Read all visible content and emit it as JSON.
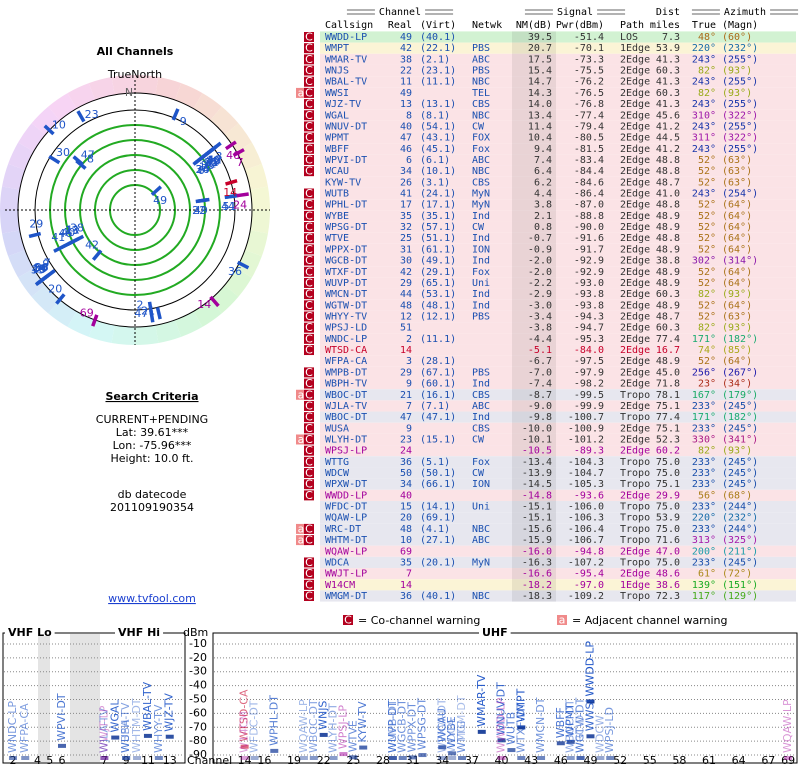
{
  "left": {
    "title": "All Channels",
    "north": "TrueNorth",
    "n": "N",
    "criteria_title": "Search Criteria",
    "criteria": [
      "CURRENT+PENDING",
      "Lat: 39.61***",
      "Lon: -75.96***",
      "Height: 10.0 ft."
    ],
    "db_label": "db datecode",
    "db_code": "201109190354",
    "link": "www.tvfool.com"
  },
  "table": {
    "groups": {
      "channel": "Channel",
      "signal": "Signal",
      "dist": "Dist",
      "azimuth": "Azimuth"
    },
    "headers": {
      "callsign": "Callsign",
      "real": "Real",
      "virt": "(Virt)",
      "netwk": "Netwk",
      "nm": "NM(dB)",
      "pwr": "Pwr(dBm)",
      "path": "Path",
      "dist": "miles",
      "az": "True",
      "magn": "(Magn)"
    },
    "rows": [
      {
        "flags": [
          "C"
        ],
        "callsign": "WWDD-LP",
        "real": "49",
        "virt": "(40.1)",
        "nm": "39.5",
        "pwr": "-51.4",
        "path": "LOS",
        "dist": "7.3",
        "az": "48°",
        "magn": "(60°)"
      },
      {
        "flags": [
          "C"
        ],
        "callsign": "WMPT",
        "real": "42",
        "virt": "(22.1)",
        "netwk": "PBS",
        "nm": "20.7",
        "pwr": "-70.1",
        "path": "1Edge",
        "dist": "53.9",
        "az": "220°",
        "magn": "(232°)"
      },
      {
        "flags": [
          "C"
        ],
        "callsign": "WMAR-TV",
        "real": "38",
        "virt": "(2.1)",
        "netwk": "ABC",
        "nm": "17.5",
        "pwr": "-73.3",
        "path": "2Edge",
        "dist": "41.3",
        "az": "243°",
        "magn": "(255°)"
      },
      {
        "flags": [
          "C"
        ],
        "callsign": "WNJS",
        "real": "22",
        "virt": "(23.1)",
        "netwk": "PBS",
        "nm": "15.4",
        "pwr": "-75.5",
        "path": "2Edge",
        "dist": "60.3",
        "az": "82°",
        "magn": "(93°)"
      },
      {
        "flags": [
          "C"
        ],
        "callsign": "WBAL-TV",
        "real": "11",
        "virt": "(11.1)",
        "netwk": "NBC",
        "nm": "14.7",
        "pwr": "-76.2",
        "path": "2Edge",
        "dist": "41.3",
        "az": "243°",
        "magn": "(255°)"
      },
      {
        "flags": [
          "a",
          "C"
        ],
        "callsign": "WWSI",
        "real": "49",
        "netwk": "TEL",
        "nm": "14.3",
        "pwr": "-76.5",
        "path": "2Edge",
        "dist": "60.3",
        "az": "82°",
        "magn": "(93°)"
      },
      {
        "flags": [
          "C"
        ],
        "callsign": "WJZ-TV",
        "real": "13",
        "virt": "(13.1)",
        "netwk": "CBS",
        "nm": "14.0",
        "pwr": "-76.8",
        "path": "2Edge",
        "dist": "41.3",
        "az": "243°",
        "magn": "(255°)"
      },
      {
        "flags": [
          "C"
        ],
        "callsign": "WGAL",
        "real": "8",
        "virt": "(8.1)",
        "netwk": "NBC",
        "nm": "13.4",
        "pwr": "-77.4",
        "path": "2Edge",
        "dist": "45.6",
        "az": "310°",
        "magn": "(322°)"
      },
      {
        "flags": [
          "C"
        ],
        "callsign": "WNUV-DT",
        "real": "40",
        "virt": "(54.1)",
        "netwk": "CW",
        "nm": "11.4",
        "pwr": "-79.4",
        "path": "2Edge",
        "dist": "41.2",
        "az": "243°",
        "magn": "(255°)"
      },
      {
        "flags": [
          "C"
        ],
        "callsign": "WPMT",
        "real": "47",
        "virt": "(43.1)",
        "netwk": "FOX",
        "nm": "10.4",
        "pwr": "-80.5",
        "path": "2Edge",
        "dist": "44.5",
        "az": "311°",
        "magn": "(322°)"
      },
      {
        "flags": [
          "C"
        ],
        "callsign": "WBFF",
        "real": "46",
        "virt": "(45.1)",
        "netwk": "Fox",
        "nm": "9.4",
        "pwr": "-81.5",
        "path": "2Edge",
        "dist": "41.2",
        "az": "243°",
        "magn": "(255°)"
      },
      {
        "flags": [
          "C"
        ],
        "callsign": "WPVI-DT",
        "real": "6",
        "virt": "(6.1)",
        "netwk": "ABC",
        "nm": "7.4",
        "pwr": "-83.4",
        "path": "2Edge",
        "dist": "48.8",
        "az": "52°",
        "magn": "(63°)"
      },
      {
        "flags": [
          "C"
        ],
        "callsign": "WCAU",
        "real": "34",
        "virt": "(10.1)",
        "netwk": "NBC",
        "nm": "6.4",
        "pwr": "-84.4",
        "path": "2Edge",
        "dist": "48.8",
        "az": "52°",
        "magn": "(63°)"
      },
      {
        "callsign": "KYW-TV",
        "real": "26",
        "virt": "(3.1)",
        "netwk": "CBS",
        "nm": "6.2",
        "pwr": "-84.6",
        "path": "2Edge",
        "dist": "48.7",
        "az": "52°",
        "magn": "(63°)"
      },
      {
        "flags": [
          "C"
        ],
        "callsign": "WUTB",
        "real": "41",
        "virt": "(24.1)",
        "netwk": "MyN",
        "nm": "4.4",
        "pwr": "-86.4",
        "path": "2Edge",
        "dist": "41.0",
        "az": "243°",
        "magn": "(254°)"
      },
      {
        "flags": [
          "C"
        ],
        "callsign": "WPHL-DT",
        "real": "17",
        "virt": "(17.1)",
        "netwk": "MyN",
        "nm": "3.8",
        "pwr": "-87.0",
        "path": "2Edge",
        "dist": "48.8",
        "az": "52°",
        "magn": "(64°)"
      },
      {
        "flags": [
          "C"
        ],
        "callsign": "WYBE",
        "real": "35",
        "virt": "(35.1)",
        "netwk": "Ind",
        "nm": "2.1",
        "pwr": "-88.8",
        "path": "2Edge",
        "dist": "48.9",
        "az": "52°",
        "magn": "(64°)"
      },
      {
        "flags": [
          "C"
        ],
        "callsign": "WPSG-DT",
        "real": "32",
        "virt": "(57.1)",
        "netwk": "CW",
        "nm": "0.8",
        "pwr": "-90.0",
        "path": "2Edge",
        "dist": "48.9",
        "az": "52°",
        "magn": "(64°)"
      },
      {
        "flags": [
          "C"
        ],
        "callsign": "WTVE",
        "real": "25",
        "virt": "(51.1)",
        "netwk": "Ind",
        "nm": "-0.7",
        "pwr": "-91.6",
        "path": "2Edge",
        "dist": "48.8",
        "az": "52°",
        "magn": "(64°)"
      },
      {
        "flags": [
          "C"
        ],
        "callsign": "WPPX-DT",
        "real": "31",
        "virt": "(61.1)",
        "netwk": "ION",
        "nm": "-0.9",
        "pwr": "-91.7",
        "path": "2Edge",
        "dist": "48.9",
        "az": "52°",
        "magn": "(64°)"
      },
      {
        "flags": [
          "C"
        ],
        "callsign": "WGCB-DT",
        "real": "30",
        "virt": "(49.1)",
        "netwk": "Ind",
        "nm": "-2.0",
        "pwr": "-92.9",
        "path": "2Edge",
        "dist": "38.8",
        "az": "302°",
        "magn": "(314°)"
      },
      {
        "flags": [
          "C"
        ],
        "callsign": "WTXF-DT",
        "real": "42",
        "virt": "(29.1)",
        "netwk": "Fox",
        "nm": "-2.0",
        "pwr": "-92.9",
        "path": "2Edge",
        "dist": "48.9",
        "az": "52°",
        "magn": "(64°)"
      },
      {
        "flags": [
          "C"
        ],
        "callsign": "WUVP-DT",
        "real": "29",
        "virt": "(65.1)",
        "netwk": "Uni",
        "nm": "-2.2",
        "pwr": "-93.0",
        "path": "2Edge",
        "dist": "48.9",
        "az": "52°",
        "magn": "(64°)"
      },
      {
        "flags": [
          "C"
        ],
        "callsign": "WMCN-DT",
        "real": "44",
        "virt": "(53.1)",
        "netwk": "Ind",
        "nm": "-2.9",
        "pwr": "-93.8",
        "path": "2Edge",
        "dist": "60.3",
        "az": "82°",
        "magn": "(93°)"
      },
      {
        "flags": [
          "C"
        ],
        "callsign": "WGTW-DT",
        "real": "48",
        "virt": "(48.1)",
        "netwk": "Ind",
        "nm": "-3.0",
        "pwr": "-93.8",
        "path": "2Edge",
        "dist": "48.9",
        "az": "52°",
        "magn": "(64°)"
      },
      {
        "flags": [
          "C"
        ],
        "callsign": "WHYY-TV",
        "real": "12",
        "virt": "(12.1)",
        "netwk": "PBS",
        "nm": "-3.4",
        "pwr": "-94.3",
        "path": "2Edge",
        "dist": "48.7",
        "az": "52°",
        "magn": "(63°)"
      },
      {
        "flags": [
          "C"
        ],
        "callsign": "WPSJ-LD",
        "real": "51",
        "nm": "-3.8",
        "pwr": "-94.7",
        "path": "2Edge",
        "dist": "60.3",
        "az": "82°",
        "magn": "(93°)"
      },
      {
        "flags": [
          "C"
        ],
        "callsign": "WNDC-LP",
        "real": "2",
        "virt": "(11.1)",
        "nm": "-4.4",
        "pwr": "-95.3",
        "path": "2Edge",
        "dist": "77.4",
        "az": "171°",
        "magn": "(182°)"
      },
      {
        "flags": [
          "C"
        ],
        "callsign": "WTSD-CA",
        "real": "14",
        "nm": "-5.1",
        "pwr": "-84.0",
        "path": "2Edge",
        "dist": "16.7",
        "az": "74°",
        "magn": "(85°)",
        "color": "#c8002a"
      },
      {
        "callsign": "WFPA-CA",
        "real": "3",
        "virt": "(28.1)",
        "nm": "-6.7",
        "pwr": "-97.5",
        "path": "2Edge",
        "dist": "48.9",
        "az": "52°",
        "magn": "(64°)"
      },
      {
        "flags": [
          "C"
        ],
        "callsign": "WMPB-DT",
        "real": "29",
        "virt": "(67.1)",
        "netwk": "PBS",
        "nm": "-7.0",
        "pwr": "-97.9",
        "path": "2Edge",
        "dist": "45.0",
        "az": "256°",
        "magn": "(267°)"
      },
      {
        "flags": [
          "C"
        ],
        "callsign": "WBPH-TV",
        "real": "9",
        "virt": "(60.1)",
        "netwk": "Ind",
        "nm": "-7.4",
        "pwr": "-98.2",
        "path": "2Edge",
        "dist": "71.8",
        "az": "23°",
        "magn": "(34°)"
      },
      {
        "flags": [
          "a",
          "C"
        ],
        "callsign": "WBOC-DT",
        "real": "21",
        "virt": "(16.1)",
        "netwk": "CBS",
        "nm": "-8.7",
        "pwr": "-99.5",
        "path": "Tropo",
        "dist": "78.1",
        "az": "167°",
        "magn": "(179°)"
      },
      {
        "flags": [
          "C"
        ],
        "callsign": "WJLA-TV",
        "real": "7",
        "virt": "(7.1)",
        "netwk": "ABC",
        "nm": "-9.0",
        "pwr": "-99.9",
        "path": "2Edge",
        "dist": "75.1",
        "az": "233°",
        "magn": "(245°)"
      },
      {
        "flags": [
          "C"
        ],
        "callsign": "WBOC-DT",
        "real": "47",
        "virt": "(47.1)",
        "netwk": "Ind",
        "nm": "-9.8",
        "pwr": "-100.7",
        "path": "Tropo",
        "dist": "77.4",
        "az": "171°",
        "magn": "(182°)"
      },
      {
        "flags": [
          "C"
        ],
        "callsign": "WUSA",
        "real": "9",
        "netwk": "CBS",
        "nm": "-10.0",
        "pwr": "-100.9",
        "path": "2Edge",
        "dist": "75.1",
        "az": "233°",
        "magn": "(245°)"
      },
      {
        "flags": [
          "a",
          "C"
        ],
        "callsign": "WLYH-DT",
        "real": "23",
        "virt": "(15.1)",
        "netwk": "CW",
        "nm": "-10.1",
        "pwr": "-101.2",
        "path": "2Edge",
        "dist": "52.3",
        "az": "330°",
        "magn": "(341°)"
      },
      {
        "flags": [
          "C"
        ],
        "callsign": "WPSJ-LP",
        "real": "24",
        "nm": "-10.5",
        "pwr": "-89.3",
        "path": "2Edge",
        "dist": "60.2",
        "az": "82°",
        "magn": "(93°)",
        "color": "#a3009c"
      },
      {
        "flags": [
          "C"
        ],
        "callsign": "WTTG",
        "real": "36",
        "virt": "(5.1)",
        "netwk": "Fox",
        "nm": "-13.4",
        "pwr": "-104.3",
        "path": "Tropo",
        "dist": "75.0",
        "az": "233°",
        "magn": "(245°)"
      },
      {
        "flags": [
          "C"
        ],
        "callsign": "WDCW",
        "real": "50",
        "virt": "(50.1)",
        "netwk": "CW",
        "nm": "-13.9",
        "pwr": "-104.7",
        "path": "Tropo",
        "dist": "75.0",
        "az": "233°",
        "magn": "(245°)"
      },
      {
        "flags": [
          "C"
        ],
        "callsign": "WPXW-DT",
        "real": "34",
        "virt": "(66.1)",
        "netwk": "ION",
        "nm": "-14.5",
        "pwr": "-105.3",
        "path": "Tropo",
        "dist": "75.1",
        "az": "233°",
        "magn": "(245°)"
      },
      {
        "flags": [
          "C"
        ],
        "callsign": "WWDD-LP",
        "real": "40",
        "nm": "-14.8",
        "pwr": "-93.6",
        "path": "2Edge",
        "dist": "29.9",
        "az": "56°",
        "magn": "(68°)",
        "color": "#a3009c"
      },
      {
        "callsign": "WFDC-DT",
        "real": "15",
        "virt": "(14.1)",
        "netwk": "Uni",
        "nm": "-15.1",
        "pwr": "-106.0",
        "path": "Tropo",
        "dist": "75.0",
        "az": "233°",
        "magn": "(244°)"
      },
      {
        "callsign": "WQAW-LP",
        "real": "20",
        "virt": "(69.1)",
        "nm": "-15.1",
        "pwr": "-106.3",
        "path": "Tropo",
        "dist": "53.9",
        "az": "220°",
        "magn": "(232°)"
      },
      {
        "flags": [
          "a",
          "C"
        ],
        "callsign": "WRC-DT",
        "real": "48",
        "virt": "(4.1)",
        "netwk": "NBC",
        "nm": "-15.6",
        "pwr": "-106.4",
        "path": "Tropo",
        "dist": "75.0",
        "az": "233°",
        "magn": "(244°)"
      },
      {
        "flags": [
          "a",
          "C"
        ],
        "callsign": "WHTM-DT",
        "real": "10",
        "virt": "(27.1)",
        "netwk": "ABC",
        "nm": "-15.9",
        "pwr": "-106.7",
        "path": "Tropo",
        "dist": "71.6",
        "az": "313°",
        "magn": "(325°)"
      },
      {
        "callsign": "WQAW-LP",
        "real": "69",
        "nm": "-16.0",
        "pwr": "-94.8",
        "path": "2Edge",
        "dist": "47.0",
        "az": "200°",
        "magn": "(211°)",
        "color": "#a3009c"
      },
      {
        "flags": [
          "C"
        ],
        "callsign": "WDCA",
        "real": "35",
        "virt": "(20.1)",
        "netwk": "MyN",
        "nm": "-16.3",
        "pwr": "-107.2",
        "path": "Tropo",
        "dist": "75.0",
        "az": "233°",
        "magn": "(245°)"
      },
      {
        "flags": [
          "C"
        ],
        "callsign": "WWJT-LP",
        "real": "7",
        "nm": "-16.6",
        "pwr": "-95.4",
        "path": "2Edge",
        "dist": "48.6",
        "az": "61°",
        "magn": "(72°)",
        "color": "#a3009c"
      },
      {
        "flags": [
          "C"
        ],
        "callsign": "W14CM",
        "real": "14",
        "nm": "-18.2",
        "pwr": "-97.0",
        "path": "1Edge",
        "dist": "38.6",
        "az": "139°",
        "magn": "(151°)",
        "color": "#a3009c"
      },
      {
        "flags": [
          "C"
        ],
        "callsign": "WMGM-DT",
        "real": "36",
        "virt": "(40.1)",
        "netwk": "NBC",
        "nm": "-18.3",
        "pwr": "-109.2",
        "path": "Tropo",
        "dist": "72.3",
        "az": "117°",
        "magn": "(129°)"
      }
    ]
  },
  "spectrum": {
    "co_badge": "C",
    "co_warning": "= Co-channel warning",
    "adj_badge": "a",
    "adj_warning": "= Adjacent channel warning",
    "unit": "dBm",
    "channel_label": "Channel",
    "ylim": [
      -95,
      -5
    ],
    "yticks": [
      -10,
      -20,
      -30,
      -40,
      -50,
      -60,
      -70,
      -80,
      -90
    ],
    "vhf_lo": {
      "title": "VHF Lo",
      "xlim": [
        1.35,
        9.1
      ],
      "ticks": [
        2,
        4,
        5,
        6
      ]
    },
    "vhf_hi": {
      "title": "VHF Hi",
      "xlim": [
        6.6,
        14.4
      ],
      "ticks": [
        7,
        9,
        11,
        13
      ]
    },
    "uhf": {
      "title": "UHF",
      "xlim": [
        11,
        69.7
      ],
      "ticks": [
        14,
        16,
        19,
        22,
        25,
        28,
        31,
        34,
        37,
        40,
        43,
        46,
        49,
        52,
        55,
        58,
        61,
        64,
        67,
        69
      ]
    }
  }
}
